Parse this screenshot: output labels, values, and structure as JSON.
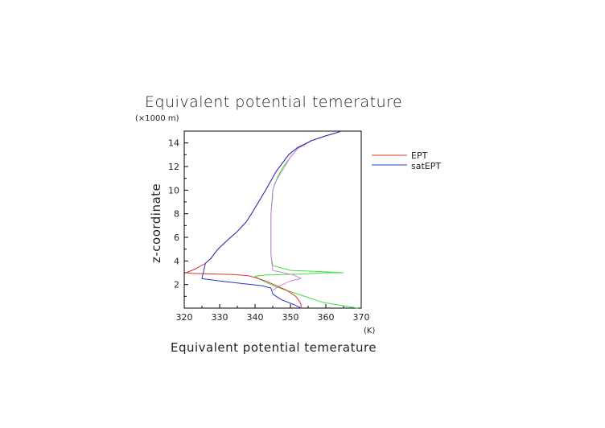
{
  "chart_data": {
    "type": "line",
    "title": "Equivalent potential temerature",
    "xlabel": "Equivalent potential temerature",
    "ylabel": "z-coordinate",
    "x_unit": "(K)",
    "y_unit": "(×1000 m)",
    "xlim": [
      320,
      370
    ],
    "ylim": [
      0,
      15
    ],
    "xticks": [
      "320",
      "330",
      "340",
      "350",
      "360",
      "370"
    ],
    "yticks": [
      "2",
      "4",
      "6",
      "8",
      "10",
      "12",
      "14"
    ],
    "legend_position": "right",
    "legend": [
      {
        "name": "EPT",
        "color": "#e03030"
      },
      {
        "name": "satEPT",
        "color": "#3030d0"
      }
    ],
    "series": [
      {
        "name": "EPT",
        "color": "#e03030",
        "x": [
          353,
          353,
          352.5,
          351.5,
          349,
          346,
          343,
          340,
          338,
          334,
          328,
          322,
          320.5,
          323,
          326,
          327.5,
          329.5,
          332,
          335,
          337.5,
          339,
          341,
          343,
          344.5,
          346,
          348,
          349.5,
          352,
          356,
          360,
          364
        ],
        "y": [
          0,
          0.3,
          0.6,
          1.0,
          1.5,
          1.9,
          2.3,
          2.6,
          2.75,
          2.85,
          2.9,
          2.95,
          3.0,
          3.3,
          3.8,
          4.2,
          5.0,
          5.7,
          6.5,
          7.3,
          8.0,
          9.0,
          10.0,
          10.8,
          11.6,
          12.4,
          13.0,
          13.6,
          14.2,
          14.6,
          14.95
        ]
      },
      {
        "name": "satEPT",
        "color": "#3030d0",
        "x": [
          353,
          351,
          347.5,
          345,
          344.5,
          342,
          336,
          330,
          325,
          326,
          327.5,
          329.5,
          332,
          335,
          337.5,
          339,
          341,
          343,
          344.5,
          346,
          348,
          349.5,
          352,
          356,
          360,
          364
        ],
        "y": [
          0,
          0.3,
          0.7,
          1.2,
          1.7,
          1.9,
          2.1,
          2.3,
          2.5,
          3.8,
          4.2,
          5.0,
          5.7,
          6.5,
          7.3,
          8.0,
          9.0,
          10.0,
          10.8,
          11.6,
          12.4,
          13.0,
          13.6,
          14.2,
          14.6,
          14.95
        ]
      },
      {
        "name": "",
        "color": "#40e040",
        "x": [
          369,
          365,
          359,
          356,
          353,
          350,
          346,
          343,
          341,
          340,
          343,
          348,
          354,
          360,
          365,
          358,
          350,
          345,
          344.5,
          344.5,
          344.5,
          345,
          345,
          345.5,
          346.5,
          348,
          350,
          352,
          356,
          360,
          364
        ],
        "y": [
          0,
          0.2,
          0.5,
          0.8,
          1.1,
          1.4,
          1.8,
          2.2,
          2.5,
          2.7,
          2.8,
          2.85,
          2.9,
          3.0,
          3.0,
          3.1,
          3.2,
          3.6,
          4.5,
          6.0,
          8.0,
          9.5,
          10.0,
          10.5,
          11.2,
          12.0,
          12.8,
          13.5,
          14.2,
          14.6,
          14.95
        ]
      },
      {
        "name": "",
        "color": "#d080e0",
        "x": [
          345,
          347,
          350,
          353,
          351,
          348,
          345,
          344.5,
          344.5,
          345,
          346,
          348,
          350,
          352,
          356,
          360,
          364
        ],
        "y": [
          1.5,
          1.9,
          2.3,
          2.5,
          2.8,
          3.0,
          3.2,
          4.5,
          8.0,
          10.0,
          10.8,
          11.8,
          12.8,
          13.5,
          14.2,
          14.6,
          14.95
        ]
      }
    ]
  }
}
